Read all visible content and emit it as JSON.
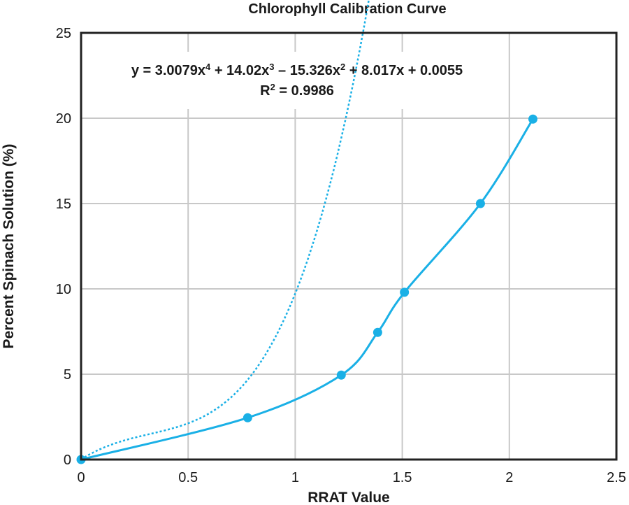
{
  "chart_data": {
    "type": "scatter",
    "title": "Chlorophyll Calibration Curve",
    "xlabel": "RRAT Value",
    "ylabel": "Percent Spinach Solution (%)",
    "xlim": [
      0,
      2.5
    ],
    "ylim": [
      0,
      25
    ],
    "x_ticks": [
      "0",
      "0.5",
      "1",
      "1.5",
      "2",
      "2.5"
    ],
    "y_ticks": [
      "0",
      "5",
      "10",
      "15",
      "20",
      "25"
    ],
    "grid": true,
    "series": [
      {
        "color": "#1ab0e6",
        "points": [
          {
            "x": 0,
            "y": 0
          },
          {
            "x": 0.778,
            "y": 2.45
          },
          {
            "x": 1.215,
            "y": 4.95
          },
          {
            "x": 1.385,
            "y": 7.45
          },
          {
            "x": 1.51,
            "y": 9.8
          },
          {
            "x": 1.865,
            "y": 15.0
          },
          {
            "x": 2.11,
            "y": 19.95
          }
        ]
      }
    ],
    "trendline": {
      "style": "dotted",
      "color": "#1ab0e6",
      "coefficients": [
        3.0079,
        14.02,
        -15.326,
        8.017,
        0.0055
      ],
      "equation_parts": [
        {
          "text": "y = 3.0079x",
          "sup": false
        },
        {
          "text": "4",
          "sup": true
        },
        {
          "text": " + 14.02x",
          "sup": false
        },
        {
          "text": "3",
          "sup": true
        },
        {
          "text": " – 15.326x",
          "sup": false
        },
        {
          "text": "2",
          "sup": true
        },
        {
          "text": " + 8.017x + 0.0055",
          "sup": false
        }
      ],
      "r2_parts": [
        {
          "text": "R",
          "sup": false
        },
        {
          "text": "2",
          "sup": true
        },
        {
          "text": " = 0.9986",
          "sup": false
        }
      ]
    }
  }
}
